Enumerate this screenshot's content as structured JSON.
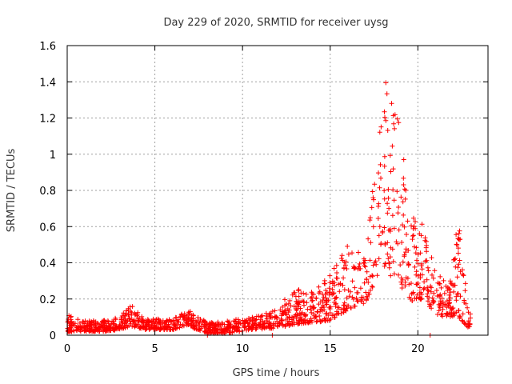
{
  "chart_data": {
    "type": "scatter",
    "title": "Day 229 of 2020, SRMTID for receiver uysg",
    "xlabel": "GPS time / hours",
    "ylabel": "SRMTID / TECUs",
    "xlim": [
      0,
      24
    ],
    "ylim": [
      0,
      1.6
    ],
    "x_ticks": [
      0,
      5,
      10,
      15,
      20
    ],
    "x_tick_labels": [
      "0",
      "5",
      "10",
      "15",
      "20"
    ],
    "y_ticks": [
      0,
      0.2,
      0.4,
      0.6,
      0.8,
      1.0,
      1.2,
      1.4,
      1.6
    ],
    "y_tick_labels": [
      "0",
      "0.2",
      "0.4",
      "0.6",
      "0.8",
      "1",
      "1.2",
      "1.4",
      "1.6"
    ],
    "grid": true,
    "marker": "+",
    "color": "#ff0000",
    "series": [
      {
        "name": "SRMTID",
        "profile": [
          {
            "x": 0.0,
            "y_min": 0.02,
            "y_max": 0.12
          },
          {
            "x": 1.0,
            "y_min": 0.02,
            "y_max": 0.08
          },
          {
            "x": 2.0,
            "y_min": 0.02,
            "y_max": 0.08
          },
          {
            "x": 3.0,
            "y_min": 0.03,
            "y_max": 0.1
          },
          {
            "x": 3.6,
            "y_min": 0.05,
            "y_max": 0.17
          },
          {
            "x": 4.5,
            "y_min": 0.03,
            "y_max": 0.09
          },
          {
            "x": 6.0,
            "y_min": 0.03,
            "y_max": 0.09
          },
          {
            "x": 6.9,
            "y_min": 0.05,
            "y_max": 0.14
          },
          {
            "x": 8.0,
            "y_min": 0.01,
            "y_max": 0.07
          },
          {
            "x": 9.0,
            "y_min": 0.01,
            "y_max": 0.08
          },
          {
            "x": 10.5,
            "y_min": 0.03,
            "y_max": 0.1
          },
          {
            "x": 12.0,
            "y_min": 0.04,
            "y_max": 0.14
          },
          {
            "x": 13.0,
            "y_min": 0.06,
            "y_max": 0.28
          },
          {
            "x": 14.0,
            "y_min": 0.07,
            "y_max": 0.25
          },
          {
            "x": 15.0,
            "y_min": 0.08,
            "y_max": 0.35
          },
          {
            "x": 16.0,
            "y_min": 0.14,
            "y_max": 0.5
          },
          {
            "x": 17.0,
            "y_min": 0.18,
            "y_max": 0.45
          },
          {
            "x": 17.6,
            "y_min": 0.3,
            "y_max": 0.95
          },
          {
            "x": 18.1,
            "y_min": 0.35,
            "y_max": 1.42
          },
          {
            "x": 18.9,
            "y_min": 0.3,
            "y_max": 1.26
          },
          {
            "x": 19.5,
            "y_min": 0.18,
            "y_max": 0.7
          },
          {
            "x": 20.3,
            "y_min": 0.2,
            "y_max": 0.62
          },
          {
            "x": 21.0,
            "y_min": 0.1,
            "y_max": 0.35
          },
          {
            "x": 21.8,
            "y_min": 0.1,
            "y_max": 0.28
          },
          {
            "x": 22.3,
            "y_min": 0.1,
            "y_max": 0.66
          },
          {
            "x": 22.9,
            "y_min": 0.04,
            "y_max": 0.12
          }
        ],
        "n_points": 1450,
        "x_range": [
          0,
          23.0
        ]
      }
    ],
    "outliers": [
      {
        "x": 8.0,
        "y": 0.0
      },
      {
        "x": 11.7,
        "y": 0.0
      },
      {
        "x": 20.7,
        "y": 0.0
      }
    ]
  }
}
